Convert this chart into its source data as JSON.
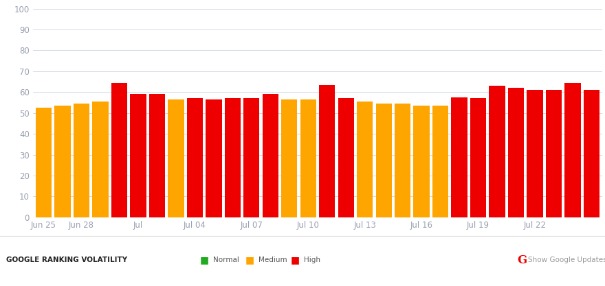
{
  "bars": [
    {
      "label": "Jun 25",
      "value": 52.5,
      "color": "#FFA500"
    },
    {
      "label": "",
      "value": 53.5,
      "color": "#FFA500"
    },
    {
      "label": "Jun 28",
      "value": 54.5,
      "color": "#FFA500"
    },
    {
      "label": "",
      "value": 55.5,
      "color": "#FFA500"
    },
    {
      "label": "",
      "value": 64.5,
      "color": "#EE0000"
    },
    {
      "label": "Jul",
      "value": 59.0,
      "color": "#EE0000"
    },
    {
      "label": "",
      "value": 59.0,
      "color": "#EE0000"
    },
    {
      "label": "",
      "value": 56.5,
      "color": "#FFA500"
    },
    {
      "label": "Jul 04",
      "value": 57.0,
      "color": "#EE0000"
    },
    {
      "label": "",
      "value": 56.5,
      "color": "#EE0000"
    },
    {
      "label": "",
      "value": 57.0,
      "color": "#EE0000"
    },
    {
      "label": "Jul 07",
      "value": 57.0,
      "color": "#EE0000"
    },
    {
      "label": "",
      "value": 59.0,
      "color": "#EE0000"
    },
    {
      "label": "",
      "value": 56.5,
      "color": "#FFA500"
    },
    {
      "label": "Jul 10",
      "value": 56.5,
      "color": "#FFA500"
    },
    {
      "label": "",
      "value": 63.5,
      "color": "#EE0000"
    },
    {
      "label": "",
      "value": 57.0,
      "color": "#EE0000"
    },
    {
      "label": "Jul 13",
      "value": 55.5,
      "color": "#FFA500"
    },
    {
      "label": "",
      "value": 54.5,
      "color": "#FFA500"
    },
    {
      "label": "",
      "value": 54.5,
      "color": "#FFA500"
    },
    {
      "label": "Jul 16",
      "value": 53.5,
      "color": "#FFA500"
    },
    {
      "label": "",
      "value": 53.5,
      "color": "#FFA500"
    },
    {
      "label": "",
      "value": 57.5,
      "color": "#EE0000"
    },
    {
      "label": "Jul 19",
      "value": 57.0,
      "color": "#EE0000"
    },
    {
      "label": "",
      "value": 63.0,
      "color": "#EE0000"
    },
    {
      "label": "",
      "value": 62.0,
      "color": "#EE0000"
    },
    {
      "label": "Jul 22",
      "value": 61.0,
      "color": "#EE0000"
    },
    {
      "label": "",
      "value": 61.0,
      "color": "#EE0000"
    },
    {
      "label": "",
      "value": 64.5,
      "color": "#EE0000"
    },
    {
      "label": "",
      "value": 61.0,
      "color": "#EE0000"
    }
  ],
  "ylim": [
    0,
    100
  ],
  "yticks": [
    0,
    10,
    20,
    30,
    40,
    50,
    60,
    70,
    80,
    90,
    100
  ],
  "background_color": "#ffffff",
  "plot_bg_color": "#f8f9fc",
  "grid_color": "#cdd3e0",
  "axis_tick_color": "#9aa0b0",
  "bar_width": 0.85,
  "title": "GOOGLE RANKING VOLATILITY",
  "title_color": "#222222",
  "legend_items": [
    {
      "label": "Normal",
      "color": "#22aa22"
    },
    {
      "label": "Medium",
      "color": "#FFA500"
    },
    {
      "label": "High",
      "color": "#EE0000"
    }
  ],
  "footer_text": "Show Google Updates",
  "google_g_color": "#EE0000",
  "footer_text_color": "#999999"
}
